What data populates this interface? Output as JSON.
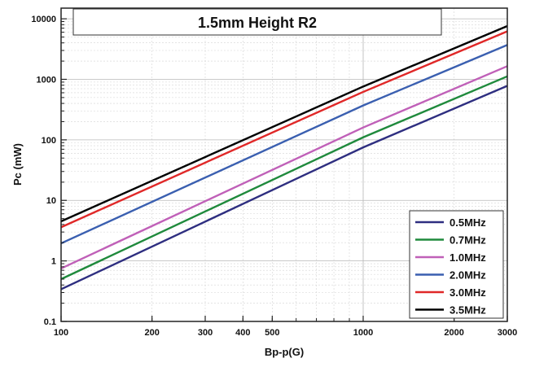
{
  "chart_data": {
    "type": "line",
    "title": "1.5mm Height R2",
    "xlabel": "Bp-p(G)",
    "ylabel": "Pc (mW)",
    "x_scale": "log",
    "y_scale": "log",
    "xlim": [
      100,
      3000
    ],
    "ylim": [
      0.1,
      15000
    ],
    "x_ticks": [
      100,
      200,
      300,
      400,
      500,
      1000,
      2000,
      3000
    ],
    "x_tick_labels": [
      "100",
      "200",
      "300",
      "400",
      "500",
      "1000",
      "2000",
      "3000"
    ],
    "y_ticks": [
      0.1,
      1,
      10,
      100,
      1000,
      10000
    ],
    "y_tick_labels": [
      "0.1",
      "1",
      "10",
      "100",
      "1000",
      "10000"
    ],
    "grid": true,
    "legend_position": "bottom-right",
    "series": [
      {
        "name": "0.5MHz",
        "color": "#2e2e80",
        "x": [
          100,
          1000,
          3000
        ],
        "y": [
          0.34,
          75,
          780
        ]
      },
      {
        "name": "0.7MHz",
        "color": "#1f8a3c",
        "x": [
          100,
          1000,
          3000
        ],
        "y": [
          0.5,
          110,
          1120
        ]
      },
      {
        "name": "1.0MHz",
        "color": "#c060b8",
        "x": [
          100,
          1000,
          3000
        ],
        "y": [
          0.75,
          160,
          1650
        ]
      },
      {
        "name": "2.0MHz",
        "color": "#3a5fb0",
        "x": [
          100,
          1000,
          3000
        ],
        "y": [
          1.95,
          370,
          3700
        ]
      },
      {
        "name": "3.0MHz",
        "color": "#e02828",
        "x": [
          100,
          1000,
          3000
        ],
        "y": [
          3.6,
          620,
          6200
        ]
      },
      {
        "name": "3.5MHz",
        "color": "#000000",
        "x": [
          100,
          1000,
          3000
        ],
        "y": [
          4.5,
          760,
          7600
        ]
      }
    ]
  }
}
